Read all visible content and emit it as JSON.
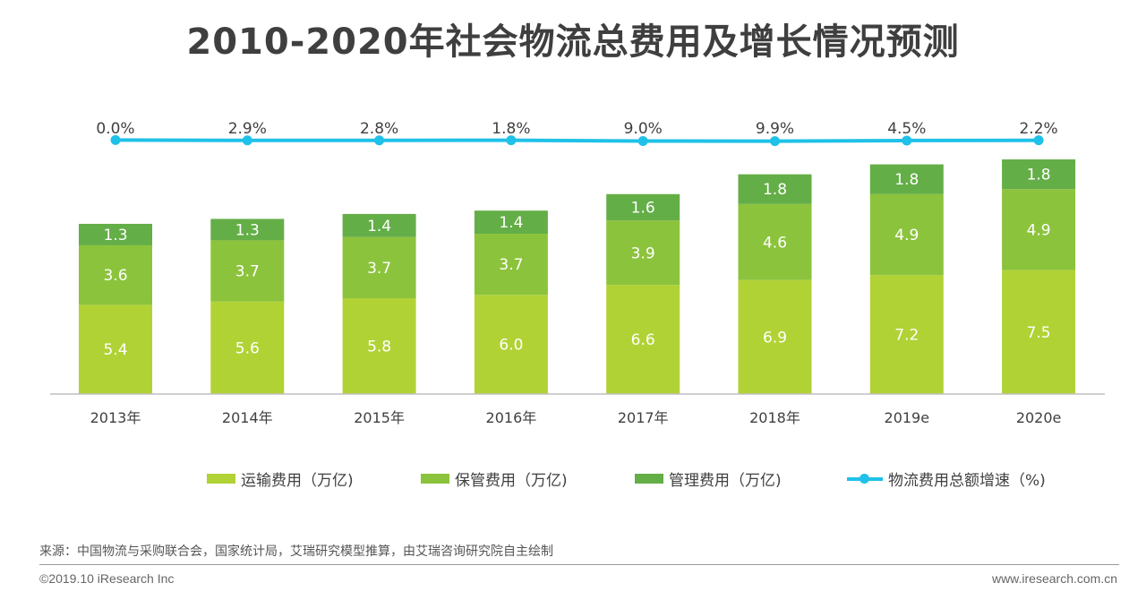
{
  "title": "2010-2020年社会物流总费用及增长情况预测",
  "colors": {
    "transport": "#b1d235",
    "storage": "#8cc33c",
    "management": "#64ae47",
    "growth": "#1fc1e8",
    "axis": "#bfbfbf"
  },
  "chart_data": {
    "type": "bar",
    "stacked": true,
    "categories": [
      "2013年",
      "2014年",
      "2015年",
      "2016年",
      "2017年",
      "2018年",
      "2019e",
      "2020e"
    ],
    "series": [
      {
        "name": "运输费用（万亿)",
        "values": [
          5.4,
          5.6,
          5.8,
          6.0,
          6.6,
          6.9,
          7.2,
          7.5
        ]
      },
      {
        "name": "保管费用（万亿)",
        "values": [
          3.6,
          3.7,
          3.7,
          3.7,
          3.9,
          4.6,
          4.9,
          4.9
        ]
      },
      {
        "name": "管理费用（万亿)",
        "values": [
          1.3,
          1.3,
          1.4,
          1.4,
          1.6,
          1.8,
          1.8,
          1.8
        ]
      }
    ],
    "line_series": {
      "name": "物流费用总额增速（%)",
      "values": [
        0.0,
        2.9,
        2.8,
        1.8,
        9.0,
        9.9,
        4.5,
        2.2
      ],
      "labels": [
        "0.0%",
        "2.9%",
        "2.8%",
        "1.8%",
        "9.0%",
        "9.9%",
        "4.5%",
        "2.2%"
      ]
    },
    "legend_position": "bottom",
    "grid": false
  },
  "legend": {
    "transport": "运输费用（万亿)",
    "storage": "保管费用（万亿)",
    "management": "管理费用（万亿)",
    "growth": "物流费用总额增速（%)"
  },
  "footer": {
    "source": "来源：中国物流与采购联合会，国家统计局，艾瑞研究模型推算，由艾瑞咨询研究院自主绘制",
    "copyright": "©2019.10 iResearch Inc",
    "website": "www.iresearch.com.cn"
  }
}
